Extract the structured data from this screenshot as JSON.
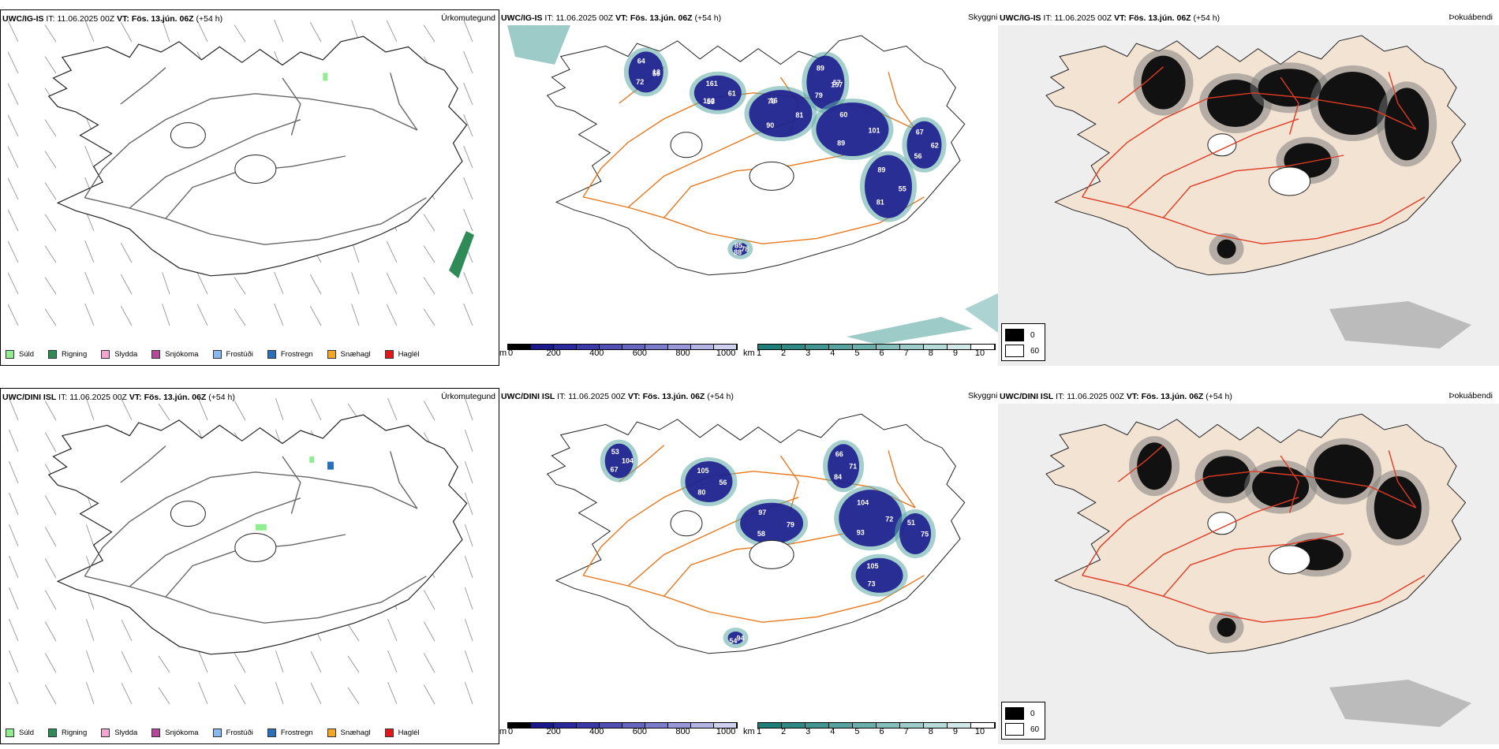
{
  "panels": [
    {
      "row": "top",
      "precip": {
        "model": "UWC/IG-IS",
        "it_label": "IT:",
        "it_value": "11.06.2025 00Z",
        "vt_label": "VT:",
        "vt_value": "Fös. 13.jún. 06Z",
        "lead": "(+54 h)",
        "type_title": "Úrkomutegund"
      },
      "visibility": {
        "model": "UWC/IG-IS",
        "it_label": "IT:",
        "it_value": "11.06.2025 00Z",
        "vt_label": "VT:",
        "vt_value": "Fös. 13.jún. 06Z",
        "lead": "(+54 h)",
        "type_title": "Skyggni",
        "labels": [
          "12",
          "59",
          "76",
          "57",
          "89",
          "89",
          "62",
          "88",
          "64",
          "61",
          "90",
          "89",
          "101",
          "81",
          "67",
          "78",
          "72",
          "161",
          "81",
          "79",
          "60",
          "55",
          "56",
          "85",
          "59",
          "162",
          "16",
          "157"
        ]
      },
      "fog": {
        "model": "UWC/IG-IS",
        "it_label": "IT:",
        "it_value": "11.06.2025 00Z",
        "vt_label": "VT:",
        "vt_value": "Fös. 13.jún. 06Z",
        "lead": "(+54 h)",
        "type_title": "Þokuábendi"
      }
    },
    {
      "row": "bottom",
      "precip": {
        "model": "UWC/DINI ISL",
        "it_label": "IT:",
        "it_value": "11.06.2025 00Z",
        "vt_label": "VT:",
        "vt_value": "Fös. 13.jún. 06Z",
        "lead": "(+54 h)",
        "type_title": "Úrkomutegund"
      },
      "visibility": {
        "model": "UWC/DINI ISL",
        "it_label": "IT:",
        "it_value": "11.06.2025 00Z",
        "vt_label": "VT:",
        "vt_value": "Fös. 13.jún. 06Z",
        "lead": "(+54 h)",
        "type_title": "Skyggni",
        "labels": [
          "104",
          "80",
          "97",
          "71",
          "93",
          "105",
          "75",
          "54",
          "53",
          "56",
          "58",
          "66",
          "72",
          "73",
          "51",
          "94",
          "67",
          "105",
          "79",
          "84",
          "104"
        ]
      },
      "fog": {
        "model": "UWC/DINI ISL",
        "it_label": "IT:",
        "it_value": "11.06.2025 00Z",
        "vt_label": "VT:",
        "vt_value": "Fös. 13.jún. 06Z",
        "lead": "(+54 h)",
        "type_title": "Þokuábendi"
      }
    }
  ],
  "precip_legend": [
    {
      "label": "Súld",
      "color": "#90ee90"
    },
    {
      "label": "Rigning",
      "color": "#2e8b57"
    },
    {
      "label": "Slydda",
      "color": "#f4a6d0"
    },
    {
      "label": "Snjókoma",
      "color": "#b5479b"
    },
    {
      "label": "Frostúði",
      "color": "#87b9f0"
    },
    {
      "label": "Frostregn",
      "color": "#2a6fbe"
    },
    {
      "label": "Snæhagl",
      "color": "#f5a623"
    },
    {
      "label": "Haglél",
      "color": "#e3141c"
    }
  ],
  "elevation_scale": {
    "unit": "m",
    "ticks": [
      "0",
      "200",
      "400",
      "600",
      "800",
      "1000"
    ],
    "colors": [
      "#000000",
      "#1a1a8a",
      "#2a2a9c",
      "#3a3aa8",
      "#5050b4",
      "#6666c0",
      "#7c7ccc",
      "#9898d8",
      "#b4b4e4",
      "#d0d0f0"
    ]
  },
  "visibility_scale": {
    "unit": "km",
    "ticks": [
      "1",
      "2",
      "3",
      "4",
      "5",
      "6",
      "7",
      "8",
      "9",
      "10"
    ],
    "colors": [
      "#1e7e7a",
      "#2f8a86",
      "#419693",
      "#56a3a0",
      "#6cb0ad",
      "#84bfbc",
      "#9dcdcb",
      "#b6dbd9",
      "#d0e9e8",
      "#ffffff"
    ]
  },
  "fog_scale": {
    "items": [
      {
        "value": "0",
        "color": "#000000"
      },
      {
        "value": "60",
        "color": "#ffffff"
      }
    ]
  },
  "colors": {
    "land_tan": "#f3e3d3",
    "road_orange": "#e8781e",
    "road_red": "#e03a22",
    "blue_dark": "#1c1c8e",
    "teal": "#5aa8a4",
    "outline": "#222222"
  }
}
